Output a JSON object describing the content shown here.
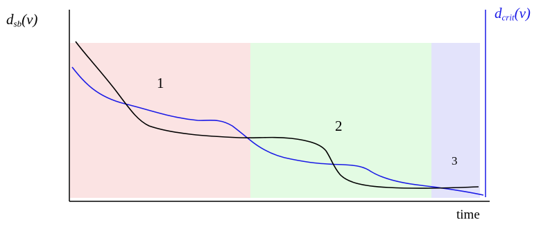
{
  "diagram": {
    "y_label_left": {
      "main": "d",
      "sub": "sb",
      "tail": "(v)",
      "color": "#000000"
    },
    "y_label_right": {
      "main": "d",
      "sub": "crit",
      "tail": "(v)",
      "color": "#1a1ae6"
    },
    "x_label": "time",
    "regions": [
      {
        "label": "1",
        "color": "#fbe3e3"
      },
      {
        "label": "2",
        "color": "#e3fbe3"
      },
      {
        "label": "3",
        "color": "#e3e3fb"
      }
    ],
    "curves": [
      {
        "name": "d_sb",
        "color": "#000000"
      },
      {
        "name": "d_crit",
        "color": "#1a1ae6"
      }
    ]
  }
}
